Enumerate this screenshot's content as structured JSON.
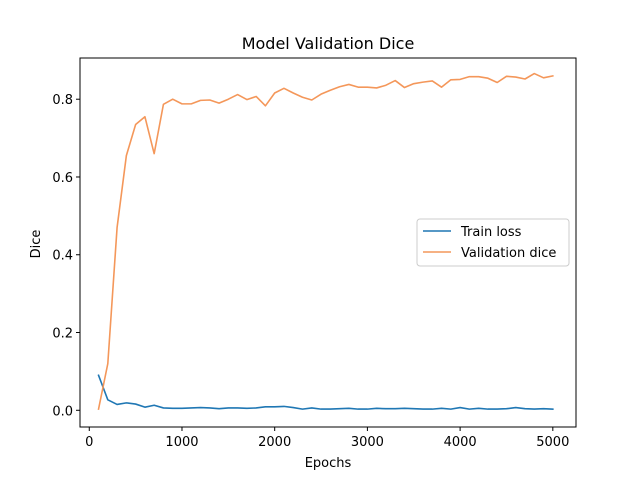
{
  "chart_data": {
    "type": "line",
    "title": "Model Validation Dice",
    "xlabel": "Epochs",
    "ylabel": "Dice",
    "xlim": [
      -100,
      5250
    ],
    "ylim": [
      -0.043,
      0.906
    ],
    "xticks": [
      0,
      1000,
      2000,
      3000,
      4000,
      5000
    ],
    "yticks": [
      0.0,
      0.2,
      0.4,
      0.6,
      0.8
    ],
    "ytick_labels": [
      "0.0",
      "0.2",
      "0.4",
      "0.6",
      "0.8"
    ],
    "grid": false,
    "legend_position": "center-right",
    "x": [
      100,
      200,
      300,
      400,
      500,
      600,
      700,
      800,
      900,
      1000,
      1100,
      1200,
      1300,
      1400,
      1500,
      1600,
      1700,
      1800,
      1900,
      2000,
      2100,
      2200,
      2300,
      2400,
      2500,
      2600,
      2700,
      2800,
      2900,
      3000,
      3100,
      3200,
      3300,
      3400,
      3500,
      3600,
      3700,
      3800,
      3900,
      4000,
      4100,
      4200,
      4300,
      4400,
      4500,
      4600,
      4700,
      4800,
      4900,
      5000
    ],
    "series": [
      {
        "name": "Train loss",
        "color": "#1f77b4",
        "values": [
          0.09,
          0.027,
          0.015,
          0.019,
          0.016,
          0.008,
          0.013,
          0.006,
          0.005,
          0.005,
          0.006,
          0.007,
          0.006,
          0.004,
          0.006,
          0.006,
          0.005,
          0.006,
          0.009,
          0.009,
          0.01,
          0.007,
          0.003,
          0.006,
          0.003,
          0.003,
          0.004,
          0.005,
          0.003,
          0.003,
          0.005,
          0.004,
          0.004,
          0.005,
          0.004,
          0.003,
          0.003,
          0.005,
          0.003,
          0.007,
          0.003,
          0.005,
          0.003,
          0.003,
          0.004,
          0.007,
          0.004,
          0.003,
          0.004,
          0.003
        ]
      },
      {
        "name": "Validation dice",
        "color": "#f4975a",
        "values": [
          0.003,
          0.12,
          0.47,
          0.655,
          0.735,
          0.755,
          0.66,
          0.787,
          0.8,
          0.788,
          0.788,
          0.797,
          0.798,
          0.79,
          0.8,
          0.812,
          0.799,
          0.807,
          0.783,
          0.816,
          0.828,
          0.816,
          0.805,
          0.798,
          0.813,
          0.823,
          0.832,
          0.838,
          0.831,
          0.831,
          0.829,
          0.836,
          0.848,
          0.83,
          0.84,
          0.844,
          0.847,
          0.831,
          0.85,
          0.851,
          0.858,
          0.858,
          0.854,
          0.843,
          0.859,
          0.857,
          0.852,
          0.866,
          0.855,
          0.86
        ]
      }
    ]
  }
}
